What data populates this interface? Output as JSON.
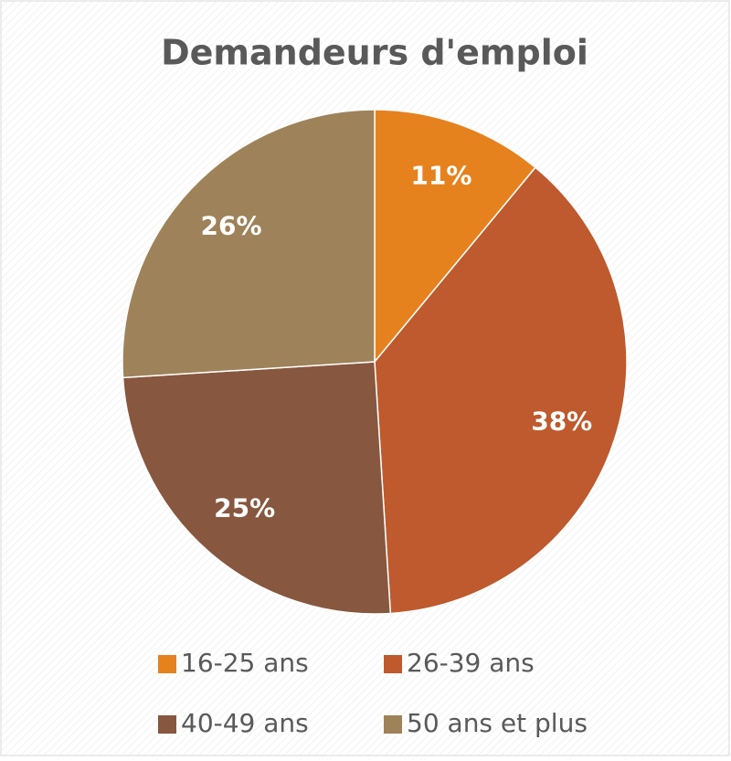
{
  "chart_data": {
    "type": "pie",
    "title": "Demandeurs d'emploi",
    "categories": [
      "16-25 ans",
      "26-39 ans",
      "40-49 ans",
      "50 ans et plus"
    ],
    "values": [
      11,
      38,
      25,
      26
    ],
    "value_labels": [
      "11%",
      "38%",
      "25%",
      "26%"
    ],
    "colors": [
      "#e6821e",
      "#be5a2d",
      "#87573f",
      "#9e8259"
    ],
    "legend": "bottom"
  }
}
